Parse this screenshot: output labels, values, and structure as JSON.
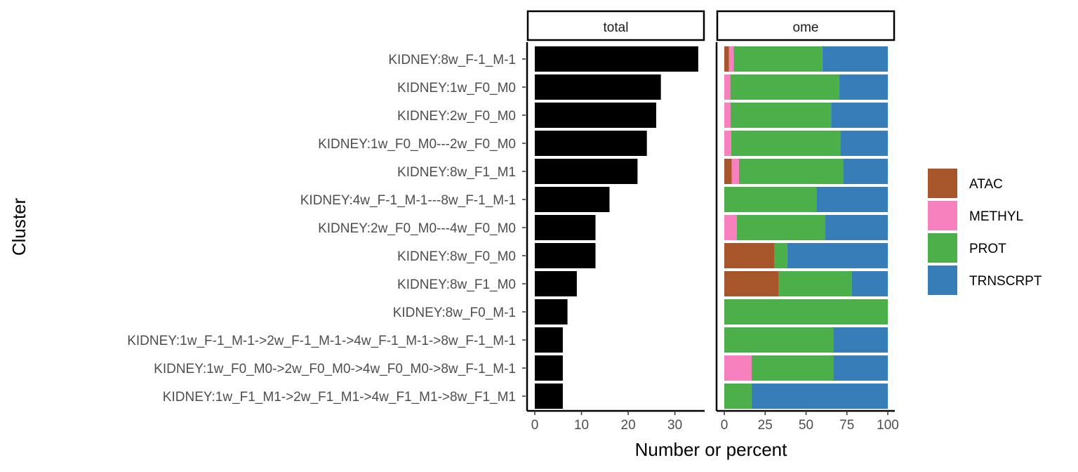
{
  "chart_data": {
    "type": "bar",
    "orientation": "horizontal",
    "ylabel": "Cluster",
    "xlabel": "Number or percent",
    "categories": [
      "KIDNEY:8w_F-1_M-1",
      "KIDNEY:1w_F0_M0",
      "KIDNEY:2w_F0_M0",
      "KIDNEY:1w_F0_M0---2w_F0_M0",
      "KIDNEY:8w_F1_M1",
      "KIDNEY:4w_F-1_M-1---8w_F-1_M-1",
      "KIDNEY:2w_F0_M0---4w_F0_M0",
      "KIDNEY:8w_F0_M0",
      "KIDNEY:8w_F1_M0",
      "KIDNEY:8w_F0_M-1",
      "KIDNEY:1w_F-1_M-1->2w_F-1_M-1->4w_F-1_M-1->8w_F-1_M-1",
      "KIDNEY:1w_F0_M0->2w_F0_M0->4w_F0_M0->8w_F-1_M-1",
      "KIDNEY:1w_F1_M1->2w_F1_M1->4w_F1_M1->8w_F1_M1"
    ],
    "panels": [
      {
        "strip": "total",
        "xlim": [
          0,
          36
        ],
        "ticks": [
          "0",
          "10",
          "20",
          "30"
        ],
        "tick_values": [
          0,
          10,
          20,
          30
        ],
        "values": [
          35,
          27,
          26,
          24,
          22,
          16,
          13,
          13,
          9,
          7,
          6,
          6,
          6
        ],
        "color": "#000000"
      },
      {
        "strip": "ome",
        "stacked": true,
        "xlim": [
          0,
          100
        ],
        "ticks": [
          "0",
          "25",
          "50",
          "75",
          "100"
        ],
        "tick_values": [
          0,
          25,
          50,
          75,
          100
        ],
        "series": [
          {
            "name": "ATAC",
            "color": "#a6562a",
            "values": [
              2.9,
              0,
              0,
              0,
              4.5,
              0,
              0,
              30.8,
              33.3,
              0,
              0,
              0,
              0
            ]
          },
          {
            "name": "METHYL",
            "color": "#f781bf",
            "values": [
              2.9,
              3.7,
              3.8,
              4.2,
              4.5,
              0,
              7.7,
              0,
              0,
              0,
              0,
              16.7,
              0
            ]
          },
          {
            "name": "PROT",
            "color": "#4daf4a",
            "values": [
              54.2,
              66.7,
              61.5,
              66.7,
              63.7,
              56.3,
              53.8,
              7.7,
              44.5,
              100,
              66.7,
              50,
              16.7
            ]
          },
          {
            "name": "TRNSCRPT",
            "color": "#377eb8",
            "values": [
              40,
              29.6,
              34.7,
              29.1,
              27.3,
              43.7,
              38.5,
              61.5,
              22.2,
              0,
              33.3,
              33.3,
              83.3
            ]
          }
        ]
      }
    ],
    "legend": {
      "position": "right",
      "entries": [
        "ATAC",
        "METHYL",
        "PROT",
        "TRNSCRPT"
      ]
    },
    "grid": false
  }
}
